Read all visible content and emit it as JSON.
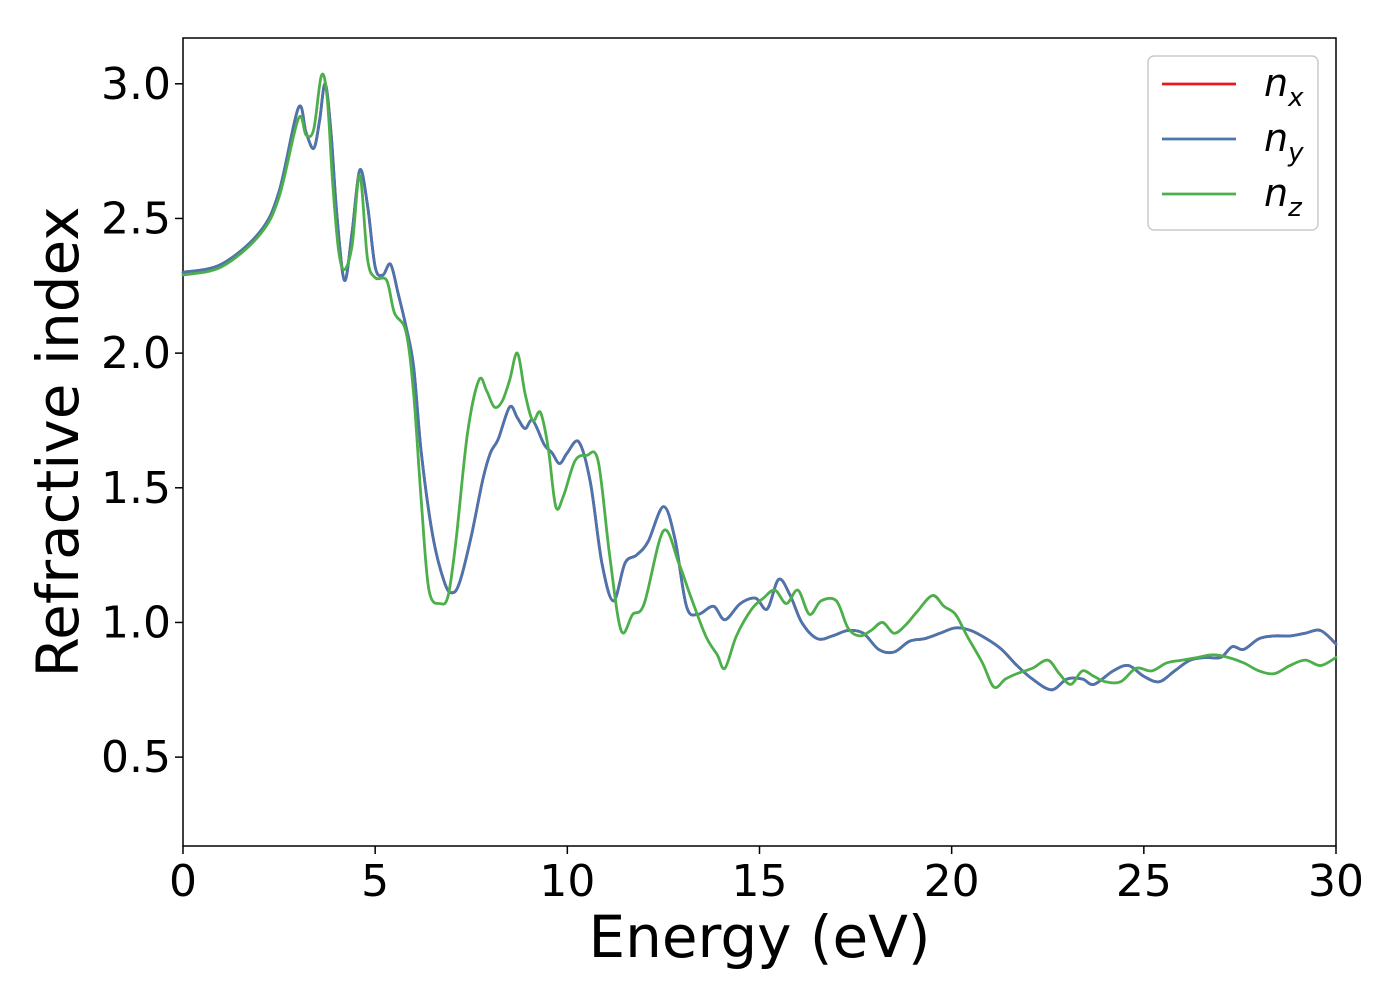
{
  "chart_data": {
    "type": "line",
    "xlabel": "Energy (eV)",
    "ylabel": "Refractive index",
    "xlim": [
      0,
      30
    ],
    "ylim": [
      0.17,
      3.17
    ],
    "x_ticks": [
      0,
      5,
      10,
      15,
      20,
      25,
      30
    ],
    "x_tick_labels": [
      "0",
      "5",
      "10",
      "15",
      "20",
      "25",
      "30"
    ],
    "y_ticks": [
      0.5,
      1.0,
      1.5,
      2.0,
      2.5,
      3.0
    ],
    "y_tick_labels": [
      "0.5",
      "1.0",
      "1.5",
      "2.0",
      "2.5",
      "3.0"
    ],
    "grid": false,
    "legend_position": "top-right",
    "series": [
      {
        "name": "n_x",
        "legend_base": "n",
        "legend_sub": "x",
        "color": "#e41a1c",
        "x": [
          0,
          1,
          2,
          2.5,
          3,
          3.2,
          3.4,
          3.55,
          3.7,
          3.85,
          4,
          4.2,
          4.4,
          4.6,
          4.8,
          5,
          5.2,
          5.4,
          5.6,
          5.8,
          6,
          6.2,
          6.5,
          6.8,
          7,
          7.2,
          7.5,
          7.8,
          8,
          8.2,
          8.5,
          8.7,
          8.9,
          9.1,
          9.4,
          9.6,
          9.8,
          10,
          10.3,
          10.6,
          10.9,
          11.2,
          11.5,
          11.8,
          12.1,
          12.5,
          12.8,
          13.1,
          13.4,
          13.8,
          14.1,
          14.5,
          14.9,
          15.2,
          15.5,
          15.8,
          16.1,
          16.5,
          16.9,
          17.3,
          17.7,
          18.1,
          18.5,
          18.9,
          19.3,
          19.7,
          20.1,
          20.5,
          20.9,
          21.3,
          21.7,
          22.1,
          22.6,
          23,
          23.4,
          23.7,
          24.2,
          24.6,
          25,
          25.4,
          25.8,
          26.2,
          26.6,
          27,
          27.3,
          27.6,
          28,
          28.4,
          28.8,
          29.2,
          29.6,
          30
        ],
        "y": [
          2.3,
          2.33,
          2.45,
          2.6,
          2.91,
          2.82,
          2.76,
          2.86,
          3.0,
          2.82,
          2.52,
          2.27,
          2.45,
          2.68,
          2.55,
          2.32,
          2.29,
          2.33,
          2.22,
          2.1,
          1.95,
          1.63,
          1.32,
          1.15,
          1.11,
          1.15,
          1.32,
          1.53,
          1.63,
          1.68,
          1.8,
          1.76,
          1.72,
          1.75,
          1.66,
          1.63,
          1.59,
          1.63,
          1.67,
          1.52,
          1.22,
          1.08,
          1.22,
          1.25,
          1.3,
          1.43,
          1.31,
          1.06,
          1.03,
          1.06,
          1.01,
          1.07,
          1.09,
          1.05,
          1.16,
          1.1,
          1.0,
          0.94,
          0.95,
          0.97,
          0.96,
          0.9,
          0.89,
          0.93,
          0.94,
          0.96,
          0.98,
          0.97,
          0.94,
          0.9,
          0.84,
          0.79,
          0.75,
          0.79,
          0.79,
          0.77,
          0.82,
          0.84,
          0.8,
          0.78,
          0.82,
          0.86,
          0.87,
          0.87,
          0.91,
          0.9,
          0.94,
          0.95,
          0.95,
          0.96,
          0.97,
          0.92
        ]
      },
      {
        "name": "n_y",
        "legend_base": "n",
        "legend_sub": "y",
        "color": "#4a76b0",
        "x": [
          0,
          1,
          2,
          2.5,
          3,
          3.2,
          3.4,
          3.55,
          3.7,
          3.85,
          4,
          4.2,
          4.4,
          4.6,
          4.8,
          5,
          5.2,
          5.4,
          5.6,
          5.8,
          6,
          6.2,
          6.5,
          6.8,
          7,
          7.2,
          7.5,
          7.8,
          8,
          8.2,
          8.5,
          8.7,
          8.9,
          9.1,
          9.4,
          9.6,
          9.8,
          10,
          10.3,
          10.6,
          10.9,
          11.2,
          11.5,
          11.8,
          12.1,
          12.5,
          12.8,
          13.1,
          13.4,
          13.8,
          14.1,
          14.5,
          14.9,
          15.2,
          15.5,
          15.8,
          16.1,
          16.5,
          16.9,
          17.3,
          17.7,
          18.1,
          18.5,
          18.9,
          19.3,
          19.7,
          20.1,
          20.5,
          20.9,
          21.3,
          21.7,
          22.1,
          22.6,
          23,
          23.4,
          23.7,
          24.2,
          24.6,
          25,
          25.4,
          25.8,
          26.2,
          26.6,
          27,
          27.3,
          27.6,
          28,
          28.4,
          28.8,
          29.2,
          29.6,
          30
        ],
        "y": [
          2.3,
          2.33,
          2.45,
          2.6,
          2.91,
          2.82,
          2.76,
          2.86,
          3.0,
          2.82,
          2.52,
          2.27,
          2.45,
          2.68,
          2.55,
          2.32,
          2.29,
          2.33,
          2.22,
          2.1,
          1.95,
          1.63,
          1.32,
          1.15,
          1.11,
          1.15,
          1.32,
          1.53,
          1.63,
          1.68,
          1.8,
          1.76,
          1.72,
          1.75,
          1.66,
          1.63,
          1.59,
          1.63,
          1.67,
          1.52,
          1.22,
          1.08,
          1.22,
          1.25,
          1.3,
          1.43,
          1.31,
          1.06,
          1.03,
          1.06,
          1.01,
          1.07,
          1.09,
          1.05,
          1.16,
          1.1,
          1.0,
          0.94,
          0.95,
          0.97,
          0.96,
          0.9,
          0.89,
          0.93,
          0.94,
          0.96,
          0.98,
          0.97,
          0.94,
          0.9,
          0.84,
          0.79,
          0.75,
          0.79,
          0.79,
          0.77,
          0.82,
          0.84,
          0.8,
          0.78,
          0.82,
          0.86,
          0.87,
          0.87,
          0.91,
          0.9,
          0.94,
          0.95,
          0.95,
          0.96,
          0.97,
          0.92
        ]
      },
      {
        "name": "n_z",
        "legend_base": "n",
        "legend_sub": "z",
        "color": "#4daf4a",
        "x": [
          0,
          1,
          2,
          2.5,
          3,
          3.2,
          3.4,
          3.6,
          3.75,
          3.9,
          4.05,
          4.2,
          4.4,
          4.6,
          4.8,
          5,
          5.3,
          5.5,
          5.8,
          6,
          6.2,
          6.4,
          6.7,
          6.9,
          7.1,
          7.4,
          7.7,
          7.9,
          8.1,
          8.3,
          8.5,
          8.7,
          8.9,
          9.1,
          9.3,
          9.5,
          9.7,
          9.9,
          10.2,
          10.5,
          10.8,
          11.1,
          11.4,
          11.7,
          12,
          12.5,
          12.9,
          13.2,
          13.6,
          13.9,
          14.1,
          14.4,
          14.8,
          15.1,
          15.4,
          15.7,
          16,
          16.3,
          16.6,
          17,
          17.3,
          17.6,
          17.9,
          18.2,
          18.5,
          18.8,
          19.1,
          19.5,
          19.8,
          20.1,
          20.4,
          20.8,
          21.1,
          21.4,
          21.7,
          22.1,
          22.5,
          22.8,
          23.1,
          23.4,
          23.7,
          24,
          24.4,
          24.8,
          25.2,
          25.6,
          26,
          26.4,
          26.8,
          27.2,
          27.6,
          28,
          28.4,
          28.8,
          29.2,
          29.6,
          30
        ],
        "y": [
          2.29,
          2.32,
          2.44,
          2.58,
          2.87,
          2.81,
          2.83,
          3.03,
          2.95,
          2.62,
          2.38,
          2.31,
          2.4,
          2.66,
          2.35,
          2.28,
          2.27,
          2.15,
          2.08,
          1.85,
          1.45,
          1.12,
          1.07,
          1.1,
          1.3,
          1.7,
          1.9,
          1.86,
          1.8,
          1.82,
          1.9,
          2.0,
          1.85,
          1.75,
          1.78,
          1.65,
          1.43,
          1.47,
          1.6,
          1.62,
          1.6,
          1.25,
          0.97,
          1.03,
          1.07,
          1.34,
          1.22,
          1.1,
          0.95,
          0.88,
          0.83,
          0.95,
          1.05,
          1.09,
          1.12,
          1.07,
          1.12,
          1.03,
          1.08,
          1.08,
          0.98,
          0.95,
          0.97,
          1.0,
          0.96,
          0.99,
          1.04,
          1.1,
          1.06,
          1.03,
          0.95,
          0.85,
          0.76,
          0.79,
          0.81,
          0.83,
          0.86,
          0.81,
          0.77,
          0.82,
          0.8,
          0.78,
          0.78,
          0.83,
          0.82,
          0.85,
          0.86,
          0.87,
          0.88,
          0.87,
          0.85,
          0.82,
          0.81,
          0.84,
          0.86,
          0.84,
          0.87
        ]
      }
    ]
  }
}
